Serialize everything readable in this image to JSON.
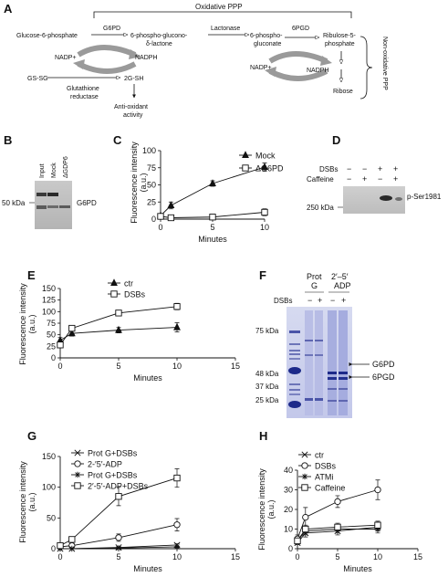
{
  "panels": {
    "A": "A",
    "B": "B",
    "C": "C",
    "D": "D",
    "E": "E",
    "F": "F",
    "G": "G",
    "H": "H"
  },
  "panel_a": {
    "oxidative_ppp": "Oxidative PPP",
    "glucose6p": "Glucose-6-phosphate",
    "g6pd": "G6PD",
    "lactone_1": "6-phospho-glucono-",
    "lactone_2": "δ-lactone",
    "lactonase": "Lactonase",
    "gluconate_1": "6-phospho-",
    "gluconate_2": "gluconate",
    "pgd6": "6PGD",
    "ru5p_1": "Ribulose-5-",
    "ru5p_2": "phosphate",
    "nadp_1": "NADP+",
    "nadph_1": "NADPH",
    "gssg": "GS-SG",
    "gsh": "2G-SH",
    "gr_1": "Glutathione",
    "gr_2": "reductase",
    "antiox_1": "Anti-oxidant",
    "antiox_2": "activity",
    "nadp_2": "NADP+",
    "nadph_2": "NADPH",
    "ribose": "Ribose",
    "non_ox": "Non-oxidative PPP"
  },
  "panel_b": {
    "lanes": [
      "Input",
      "Mock",
      "ΔGDP6"
    ],
    "marker": "50 kDa",
    "band_label": "G6PD"
  },
  "panel_d": {
    "row_labels": [
      "DSBs",
      "Caffeine"
    ],
    "signs": [
      [
        "−",
        "−",
        "+",
        "+"
      ],
      [
        "−",
        "+",
        "−",
        "+"
      ]
    ],
    "marker": "250 kDa",
    "band_label": "p-Ser1981"
  },
  "panel_f": {
    "groups": [
      "Prot\nG",
      "2′–5′\nADP"
    ],
    "group_1a": "Prot",
    "group_1b": "G",
    "group_2a": "2′–5′",
    "group_2b": "ADP",
    "dsbs": "DSBs",
    "signs": [
      "−",
      "+",
      "−",
      "+"
    ],
    "markers": [
      "75 kDa",
      "48 kDa",
      "37 kDa",
      "25 kDa"
    ],
    "band_labels": [
      "G6PD",
      "6PGD"
    ]
  },
  "chart_data": [
    {
      "id": "C",
      "type": "line",
      "xlabel": "Minutes",
      "ylabel": "Fluorescence intensity (a.u.)",
      "xlim": [
        0,
        10
      ],
      "ylim": [
        0,
        100
      ],
      "xticks": [
        0,
        5,
        10
      ],
      "yticks": [
        0,
        25,
        50,
        75,
        100
      ],
      "x": [
        0,
        1,
        5,
        10
      ],
      "series": [
        {
          "name": "Mock",
          "marker": "filled-triangle",
          "values": [
            5,
            20,
            52,
            76
          ],
          "err": [
            3,
            5,
            4,
            6
          ]
        },
        {
          "name": "ΔG6PD",
          "marker": "open-square",
          "values": [
            4,
            2,
            3,
            10
          ],
          "err": [
            2,
            2,
            2,
            5
          ]
        }
      ]
    },
    {
      "id": "E",
      "type": "line",
      "xlabel": "Minutes",
      "ylabel": "Fluorescence intensity (a.u.)",
      "xlim": [
        0,
        15
      ],
      "ylim": [
        0,
        150
      ],
      "xticks": [
        0,
        5,
        10,
        15
      ],
      "yticks": [
        0,
        25,
        50,
        75,
        100,
        125,
        150
      ],
      "x": [
        0,
        1,
        5,
        10
      ],
      "series": [
        {
          "name": "ctr",
          "marker": "filled-triangle",
          "values": [
            38,
            53,
            60,
            66
          ],
          "err": [
            6,
            6,
            6,
            10
          ]
        },
        {
          "name": "DSBs",
          "marker": "open-square",
          "values": [
            28,
            64,
            97,
            111
          ],
          "err": [
            6,
            5,
            4,
            7
          ]
        }
      ]
    },
    {
      "id": "G",
      "type": "line",
      "xlabel": "Minutes",
      "ylabel": "Fluorescence intensity (a.u.)",
      "xlim": [
        0,
        15
      ],
      "ylim": [
        0,
        150
      ],
      "xticks": [
        0,
        5,
        10,
        15
      ],
      "yticks": [
        0,
        50,
        100,
        150
      ],
      "x": [
        0,
        1,
        5,
        10
      ],
      "series": [
        {
          "name": "Prot G+DSBs",
          "marker": "x",
          "values": [
            0,
            0,
            2,
            6
          ],
          "err": [
            0,
            0,
            1,
            2
          ]
        },
        {
          "name": "2-′5′-ADP",
          "marker": "open-circle",
          "values": [
            3,
            5,
            18,
            39
          ],
          "err": [
            2,
            2,
            6,
            10
          ]
        },
        {
          "name": "Prot G+DSBs",
          "marker": "star",
          "values": [
            0,
            0,
            1,
            3
          ],
          "err": [
            0,
            0,
            1,
            1
          ]
        },
        {
          "name": "2′-5′-ADP+DSBs",
          "marker": "open-square",
          "values": [
            5,
            15,
            85,
            115
          ],
          "err": [
            3,
            4,
            15,
            15
          ]
        }
      ]
    },
    {
      "id": "H",
      "type": "line",
      "xlabel": "Minutes",
      "ylabel": "Fluorescence intensity (a.u.)",
      "xlim": [
        0,
        15
      ],
      "ylim": [
        0,
        40
      ],
      "xticks": [
        0,
        5,
        10,
        15
      ],
      "yticks": [
        0,
        10,
        20,
        30,
        40
      ],
      "x": [
        0,
        1,
        5,
        10
      ],
      "series": [
        {
          "name": "ctr",
          "marker": "x",
          "values": [
            3,
            8,
            9,
            11
          ],
          "err": [
            1,
            2,
            2,
            2
          ]
        },
        {
          "name": "DSBs",
          "marker": "open-circle",
          "values": [
            5,
            16,
            24,
            30
          ],
          "err": [
            2,
            5,
            3,
            5
          ]
        },
        {
          "name": "ATMi",
          "marker": "star",
          "values": [
            4,
            9,
            10,
            10
          ],
          "err": [
            1,
            2,
            2,
            2
          ]
        },
        {
          "name": "Caffeine",
          "marker": "open-square",
          "values": [
            4,
            10,
            11,
            12
          ],
          "err": [
            1,
            2,
            2,
            2
          ]
        }
      ]
    }
  ]
}
